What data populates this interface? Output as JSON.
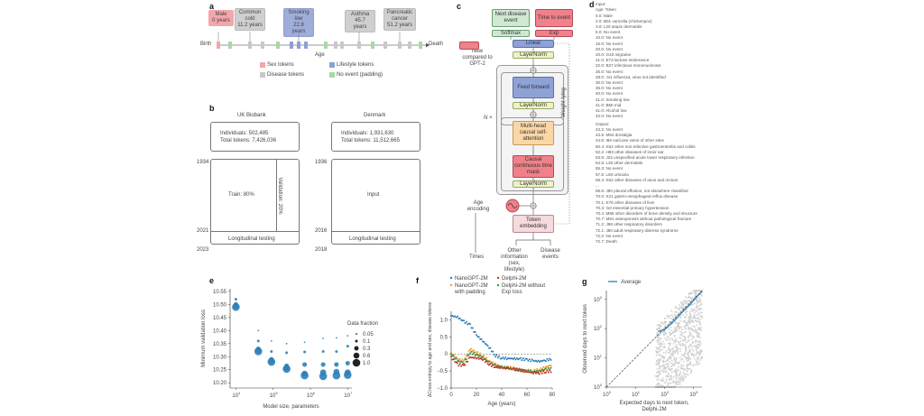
{
  "panels": {
    "a": {
      "label": "a",
      "events": [
        {
          "text": "Male\n0 years",
          "type": "sex"
        },
        {
          "text": "Common\ncold\n11.2 years",
          "type": "disease"
        },
        {
          "text": "Smoking\nlow\n22.8 years",
          "type": "lifestyle"
        },
        {
          "text": "Asthma\n45.7 years",
          "type": "disease"
        },
        {
          "text": "Pancreatic\ncancer\n51.2 years",
          "type": "disease"
        }
      ],
      "axis_start": "Birth",
      "axis_end": "Death",
      "axis_label": "Age",
      "legend": [
        {
          "label": "Sex tokens",
          "color": "#f4a6ad"
        },
        {
          "label": "Lifestyle tokens",
          "color": "#8f9fd3"
        },
        {
          "label": "Disease tokens",
          "color": "#c8c8c8"
        },
        {
          "label": "No event (padding)",
          "color": "#a8d8a8"
        }
      ]
    },
    "b": {
      "label": "b",
      "uk": {
        "title": "UK Biobank",
        "individuals": "Individuals: 502,485",
        "tokens": "Total tokens: 7,426,036",
        "year_start": "1934",
        "year_mid": "2021",
        "year_end": "2023",
        "train": "Train: 80%",
        "validation": "Validation: 20%",
        "testing": "Longitudinal testing"
      },
      "dk": {
        "title": "Denmark",
        "individuals": "Individuals: 1,931,630",
        "tokens": "Total tokens: 11,512,665",
        "year_start": "1936",
        "year_mid": "2016",
        "year_end": "2018",
        "input": "Input",
        "testing": "Longitudinal testing"
      }
    },
    "c": {
      "label": "c",
      "next_event": "Next disease event",
      "time_to_event": "Time to event",
      "softmax": "Softmax",
      "exp": "Exp",
      "linear": "Linear",
      "layernorm": "LayerNorm",
      "feed_forward": "Feed forward",
      "attention": "Multi-head causal self-attention",
      "time_mask": "Causal continuous time mask",
      "n_times": "N ×",
      "age_encoding": "Age encoding",
      "token_embedding": "Token embedding",
      "times": "Times",
      "other_info": "Other information (sex, lifestyle)",
      "disease_events": "Disease events",
      "weight_tying": "Weight tying",
      "new_legend": "New compared to GPT-2",
      "colors": {
        "green": "#cfe8d2",
        "red": "#f0818a",
        "blue": "#8ea2d6",
        "yellow": "#eef3c6",
        "orange": "#fbd7a6",
        "pink": "#f6dadd"
      }
    },
    "d": {
      "label": "d",
      "input_header": "Input:",
      "input_sub": "Age: Token",
      "input_lines": [
        "0.0:   Male",
        "2.0:   B01 varicella (chickenpox)",
        "3.0:   L20 atopic dermatitis",
        "5.0:   No event",
        "10.0: No event",
        "15.0: No event",
        "20.0: No event",
        "20.0: G43 migraine",
        "21.0: E73 lactose intolerance",
        "22.0: B27 infectious mononucleosis",
        "25.0: No event",
        "28.0: J11 influenza, virus not identified",
        "30.0: No event",
        "35.0: No event",
        "40.0: No event",
        "41.0: Smoking low",
        "41.0: BMI mid",
        "41.0: Alcohol low",
        "42.0: No event"
      ],
      "output_header": "Output:",
      "output_lines": [
        "43.2: No event",
        "43.5: M54 dorsalgia",
        "44.6: I86 varicose veins of other sites",
        "50.4: K52 other non-infective gastroenteritis and colitis",
        "52.2: H83 other diseases of inner ear",
        "53.9: J22 unspecified acute lower respiratory infection",
        "54.5: L30 other dermatitis",
        "55.3: No event",
        "57.5: L50 urticaria",
        "58.4: K62 other diseases of anus and rectum",
        "...",
        "69.8: J90 pleural effusion, not elsewhere classified",
        "70.0: K21 gastro-oesophageal reflux disease",
        "70.1: K76 other diseases of liver",
        "70.3: I10 essential primary hypertension",
        "70.4: M85 other disorders of bone density and structure",
        "70.7: M81 osteoporosis without pathological fracture",
        "71.2: J98 other respiratory disorders",
        "72.1: J80 adult respiratory distress syndrome",
        "72.2: No event",
        "72.7: Death"
      ]
    }
  },
  "chart_data": [
    {
      "panel": "e",
      "type": "scatter",
      "title": "",
      "xlabel": "Model size, parameters",
      "ylabel": "Minimum validation loss",
      "xscale": "log",
      "xlim": [
        7000,
        13000000
      ],
      "ylim": [
        10.18,
        10.56
      ],
      "xticks": [
        "10^4",
        "10^5",
        "10^6",
        "10^7"
      ],
      "yticks": [
        10.2,
        10.25,
        10.3,
        10.35,
        10.4,
        10.45,
        10.5,
        10.55
      ],
      "legend_title": "Data fraction",
      "legend": [
        "0.05",
        "0.1",
        "0.3",
        "0.6",
        "1.0"
      ],
      "x": [
        10000,
        40000,
        90000,
        230000,
        700000,
        2200000,
        5000000,
        10000000
      ],
      "series": [
        {
          "name": "0.05",
          "values": [
            null,
            10.4,
            10.36,
            10.35,
            10.355,
            10.37,
            10.372,
            10.38
          ]
        },
        {
          "name": "0.1",
          "values": [
            10.52,
            10.36,
            10.32,
            10.315,
            10.318,
            10.32,
            10.32,
            10.34
          ]
        },
        {
          "name": "0.3",
          "values": [
            10.5,
            10.33,
            10.29,
            10.265,
            10.27,
            10.27,
            10.27,
            10.275
          ]
        },
        {
          "name": "0.6",
          "values": [
            10.495,
            10.325,
            10.285,
            10.258,
            10.235,
            10.24,
            10.242,
            10.24
          ]
        },
        {
          "name": "1.0",
          "values": [
            10.49,
            10.32,
            10.28,
            10.253,
            10.228,
            10.225,
            10.228,
            10.23
          ]
        }
      ]
    },
    {
      "panel": "f",
      "type": "scatter",
      "xlabel": "Age (years)",
      "ylabel": "ΔCross-entropy to age and sex, disease tokens",
      "xlim": [
        0,
        80
      ],
      "ylim": [
        -1.0,
        1.25
      ],
      "xticks": [
        0,
        20,
        40,
        60,
        80
      ],
      "yticks": [
        -1.0,
        -0.5,
        0,
        0.5,
        1.0
      ],
      "legend": [
        {
          "name": "NanoGPT-2M",
          "color": "#2f7fb8"
        },
        {
          "name": "Delphi-2M",
          "color": "#c0392b"
        },
        {
          "name": "NanoGPT-2M with padding",
          "color": "#f0a030"
        },
        {
          "name": "Delphi-2M without Exp loss",
          "color": "#3f8f3f"
        }
      ],
      "x": [
        0,
        5,
        10,
        15,
        20,
        25,
        30,
        35,
        40,
        45,
        50,
        55,
        60,
        65,
        70,
        75,
        80
      ],
      "series": [
        {
          "name": "NanoGPT-2M",
          "values": [
            1.12,
            1.08,
            0.95,
            0.85,
            0.55,
            0.38,
            0.2,
            -0.05,
            -0.12,
            -0.13,
            -0.14,
            -0.15,
            -0.17,
            -0.2,
            -0.22,
            -0.18,
            -0.15
          ]
        },
        {
          "name": "Delphi-2M",
          "values": [
            -0.1,
            -0.3,
            -0.35,
            -0.1,
            -0.12,
            -0.15,
            -0.3,
            -0.38,
            -0.4,
            -0.42,
            -0.45,
            -0.48,
            -0.52,
            -0.55,
            -0.56,
            -0.52,
            -0.5
          ]
        },
        {
          "name": "NanoGPT-2M with padding",
          "values": [
            0.02,
            -0.15,
            -0.2,
            0.15,
            0.05,
            -0.05,
            -0.2,
            -0.3,
            -0.38,
            -0.4,
            -0.42,
            -0.45,
            -0.48,
            -0.5,
            -0.45,
            -0.38,
            -0.32
          ]
        },
        {
          "name": "Delphi-2M without Exp loss",
          "values": [
            0.0,
            -0.2,
            -0.25,
            0.05,
            -0.02,
            -0.1,
            -0.25,
            -0.35,
            -0.4,
            -0.42,
            -0.45,
            -0.48,
            -0.5,
            -0.52,
            -0.5,
            -0.45,
            -0.42
          ]
        }
      ]
    },
    {
      "panel": "g",
      "type": "scatter",
      "xlabel": "Expected days to next token, Delphi-2M",
      "ylabel": "Observed days to next token",
      "xscale": "log",
      "yscale": "log",
      "xlim": [
        1,
        2000
      ],
      "ylim": [
        1,
        2000
      ],
      "xticks": [
        "10^0",
        "10^1",
        "10^2",
        "10^3"
      ],
      "yticks": [
        "10^0",
        "10^1",
        "10^2",
        "10^3"
      ],
      "legend": [
        {
          "name": "Average",
          "color": "#2f7fb8"
        }
      ],
      "average_line": {
        "x": [
          60,
          100,
          200,
          400,
          800,
          1500,
          2000
        ],
        "y": [
          80,
          90,
          170,
          350,
          700,
          1400,
          1900
        ]
      },
      "reference_line": "y = x (dashed)"
    }
  ]
}
